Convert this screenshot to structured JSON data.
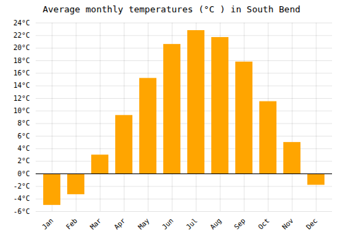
{
  "chart_data": {
    "type": "bar",
    "title": "Average monthly temperatures (°C ) in South Bend",
    "categories": [
      "Jan",
      "Feb",
      "Mar",
      "Apr",
      "May",
      "Jun",
      "Jul",
      "Aug",
      "Sep",
      "Oct",
      "Nov",
      "Dec"
    ],
    "values": [
      -5.0,
      -3.3,
      3.0,
      9.3,
      15.2,
      20.6,
      22.8,
      21.7,
      17.8,
      11.5,
      5.0,
      -1.8
    ],
    "color": "#FFA500",
    "ylim": [
      -6,
      24
    ],
    "yticks": [
      {
        "value": -6,
        "label": "-6°C"
      },
      {
        "value": -4,
        "label": "-4°C"
      },
      {
        "value": -2,
        "label": "-2°C"
      },
      {
        "value": 0,
        "label": "0°C"
      },
      {
        "value": 2,
        "label": "2°C"
      },
      {
        "value": 4,
        "label": "4°C"
      },
      {
        "value": 6,
        "label": "6°C"
      },
      {
        "value": 8,
        "label": "8°C"
      },
      {
        "value": 10,
        "label": "10°C"
      },
      {
        "value": 12,
        "label": "12°C"
      },
      {
        "value": 14,
        "label": "14°C"
      },
      {
        "value": 16,
        "label": "16°C"
      },
      {
        "value": 18,
        "label": "18°C"
      },
      {
        "value": 20,
        "label": "20°C"
      },
      {
        "value": 22,
        "label": "22°C"
      },
      {
        "value": 24,
        "label": "24°C"
      }
    ],
    "grid": true
  }
}
